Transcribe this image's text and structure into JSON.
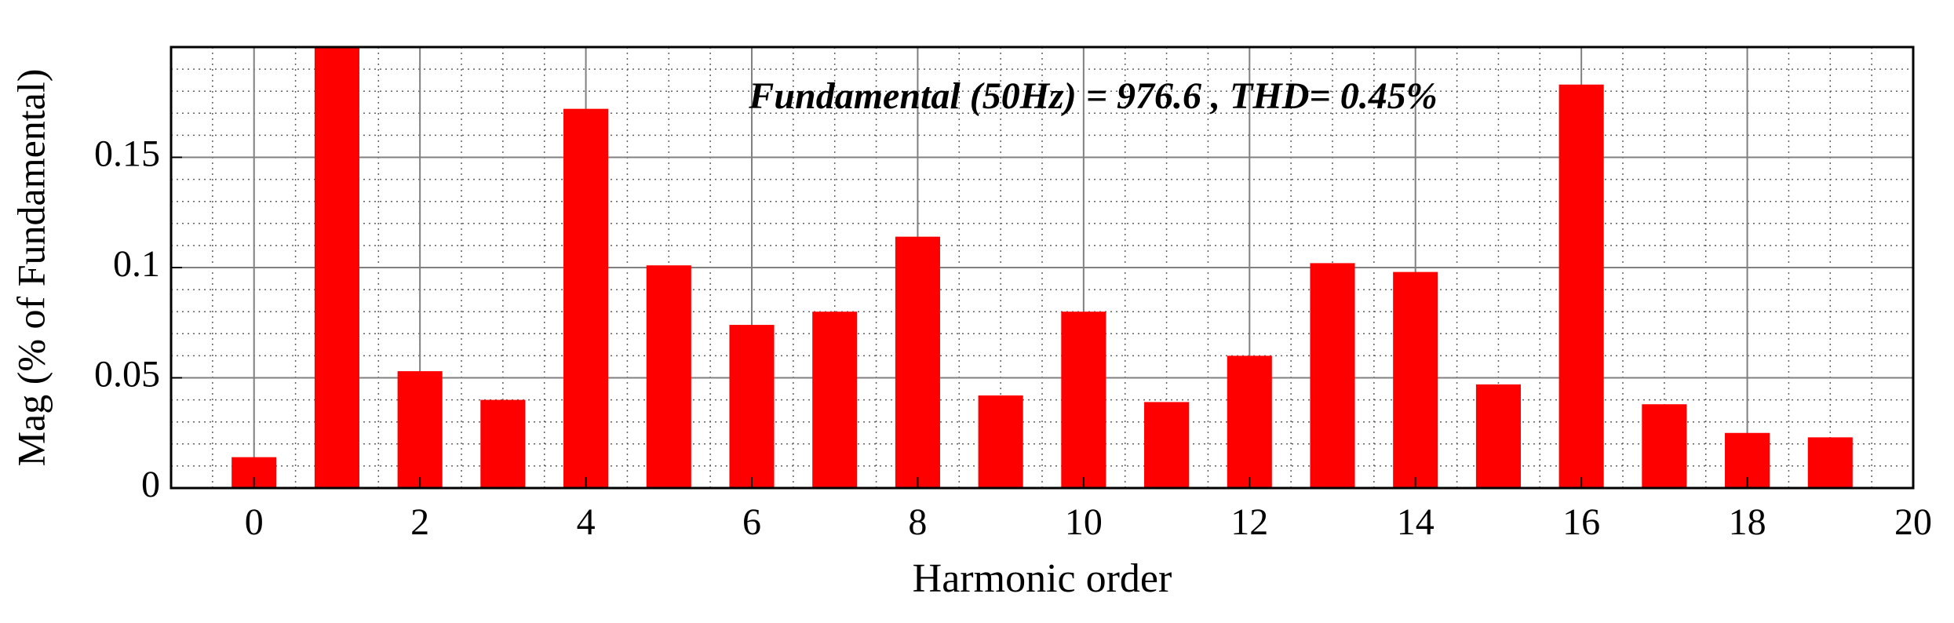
{
  "chart_data": {
    "type": "bar",
    "annotation": "Fundamental (50Hz) = 976.6 , THD= 0.45%",
    "xlabel": "Harmonic order",
    "ylabel": "Mag (% of Fundamental)",
    "x": [
      0,
      1,
      2,
      3,
      4,
      5,
      6,
      7,
      8,
      9,
      10,
      11,
      12,
      13,
      14,
      15,
      16,
      17,
      18,
      19
    ],
    "values": [
      0.014,
      0.2,
      0.053,
      0.04,
      0.172,
      0.101,
      0.074,
      0.08,
      0.114,
      0.042,
      0.08,
      0.039,
      0.06,
      0.102,
      0.098,
      0.047,
      0.183,
      0.038,
      0.025,
      0.023
    ],
    "color": "#ff0000",
    "xlim": [
      -1,
      20
    ],
    "xticks": [
      0,
      2,
      4,
      6,
      8,
      10,
      12,
      14,
      16,
      18,
      20
    ],
    "ylim": [
      0,
      0.2
    ],
    "yticks": [
      0,
      0.05,
      0.1,
      0.15
    ],
    "grid": true,
    "minor_grid": true
  }
}
